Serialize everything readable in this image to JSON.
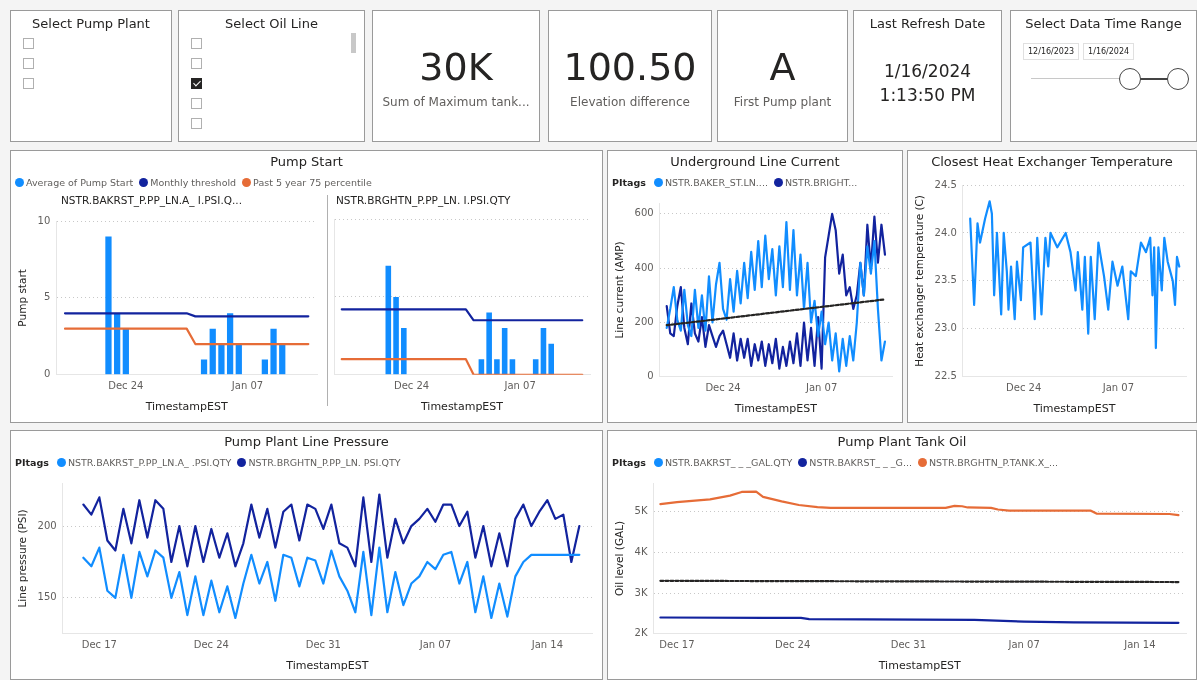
{
  "chart_data": [
    {
      "type": "other",
      "title": "Select Pump Plant"
    },
    {
      "type": "other",
      "title": "Select Oil Line"
    },
    {
      "type": "other",
      "annotations": [
        "30K",
        "Sum of Maximum tank..."
      ]
    },
    {
      "type": "other",
      "annotations": [
        "100.50",
        "Elevation difference"
      ]
    },
    {
      "type": "other",
      "annotations": [
        "A",
        "First Pump plant"
      ]
    },
    {
      "type": "other",
      "title": "Last Refresh Date",
      "annotations": [
        "1/16/2024",
        "1:13:50 PM"
      ]
    },
    {
      "type": "other",
      "title": "Select Data Time Range",
      "annotations": [
        "12/16/2023",
        "1/16/2024"
      ]
    },
    {
      "type": "bar",
      "title": "Pump Start",
      "subtitle": "NSTR.BAKRST_P.PP_LN.A_ I.PSI.Q...",
      "xlabel": "TimestampEST",
      "ylabel": "Pump start",
      "xlim": [
        "2023-12-16",
        "2024-01-15"
      ],
      "xticks": [
        {
          "value": "2023-12-24",
          "label": "Dec 24"
        },
        {
          "value": "2024-01-07",
          "label": "Jan 07"
        }
      ],
      "ylim": [
        0,
        10
      ],
      "yticks": [
        0,
        5,
        10
      ],
      "grid": "y",
      "legend": "top left",
      "series": [
        {
          "name": "Average of Pump Start",
          "color": "#118dff",
          "x": [
            "2023-12-22",
            "2023-12-23",
            "2023-12-24",
            "2024-01-02",
            "2024-01-03",
            "2024-01-04",
            "2024-01-05",
            "2024-01-06",
            "2024-01-09",
            "2024-01-10",
            "2024-01-11"
          ],
          "values": [
            9,
            4,
            3,
            1,
            3,
            2,
            4,
            2,
            1,
            3,
            2
          ]
        },
        {
          "name": "Monthly threshold",
          "type": "line",
          "color": "#12239e",
          "x": [
            "2023-12-17",
            "2023-12-31",
            "2024-01-01",
            "2024-01-14"
          ],
          "values": [
            4,
            4,
            3.8,
            3.8
          ]
        },
        {
          "name": "Past 5 year 75 percentile",
          "type": "line",
          "color": "#e66c37",
          "x": [
            "2023-12-17",
            "2023-12-31",
            "2024-01-01",
            "2024-01-14"
          ],
          "values": [
            3,
            3,
            2,
            2
          ]
        }
      ]
    },
    {
      "type": "bar",
      "subtitle": "NSTR.BRGHTN_P.PP_LN. I.PSI.QTY",
      "xlabel": "TimestampEST",
      "xlim": [
        "2023-12-14",
        "2024-01-16"
      ],
      "xticks": [
        {
          "value": "2023-12-24",
          "label": "Dec 24"
        },
        {
          "value": "2024-01-07",
          "label": "Jan 07"
        }
      ],
      "ylim": [
        0,
        10
      ],
      "yticks": [
        0,
        5,
        10
      ],
      "grid": "y",
      "tick_labels": "x",
      "series": [
        {
          "color": "#118dff",
          "x": [
            "2023-12-21",
            "2023-12-22",
            "2023-12-23",
            "2024-01-02",
            "2024-01-03",
            "2024-01-04",
            "2024-01-05",
            "2024-01-06",
            "2024-01-09",
            "2024-01-10",
            "2024-01-11"
          ],
          "values": [
            7,
            5,
            3,
            1,
            4,
            1,
            3,
            1,
            1,
            3,
            2
          ]
        },
        {
          "type": "line",
          "color": "#12239e",
          "x": [
            "2023-12-15",
            "2023-12-31",
            "2024-01-01",
            "2024-01-15"
          ],
          "values": [
            4.2,
            4.2,
            3.5,
            3.5
          ]
        },
        {
          "type": "line",
          "color": "#e66c37",
          "x": [
            "2023-12-15",
            "2023-12-31",
            "2024-01-01",
            "2024-01-15"
          ],
          "values": [
            1,
            1,
            0,
            0
          ]
        }
      ]
    },
    {
      "type": "line",
      "title": "Underground Line Current",
      "legend_title": "PItags",
      "xlabel": "TimestampEST",
      "ylabel": "Line current (AMP)",
      "xlim": [
        "2023-12-15",
        "2024-01-17"
      ],
      "xticks": [
        {
          "value": "2023-12-24",
          "label": "Dec 24"
        },
        {
          "value": "2024-01-07",
          "label": "Jan 07"
        }
      ],
      "ylim": [
        0,
        640
      ],
      "yticks": [
        0,
        200,
        400,
        600
      ],
      "grid": "y",
      "legend": "top left",
      "x": [
        "2023-12-16T00:00",
        "2023-12-16T12:00",
        "2023-12-17T00:00",
        "2023-12-17T12:00",
        "2023-12-18T00:00",
        "2023-12-18T12:00",
        "2023-12-19T00:00",
        "2023-12-19T12:00",
        "2023-12-20T00:00",
        "2023-12-20T12:00",
        "2023-12-21T00:00",
        "2023-12-21T12:00",
        "2023-12-22T00:00",
        "2023-12-22T12:00",
        "2023-12-23T00:00",
        "2023-12-23T12:00",
        "2023-12-24T00:00",
        "2023-12-24T12:00",
        "2023-12-25T00:00",
        "2023-12-25T12:00",
        "2023-12-26T00:00",
        "2023-12-26T12:00",
        "2023-12-27T00:00",
        "2023-12-27T12:00",
        "2023-12-28T00:00",
        "2023-12-28T12:00",
        "2023-12-29T00:00",
        "2023-12-29T12:00",
        "2023-12-30T00:00",
        "2023-12-30T12:00",
        "2023-12-31T00:00",
        "2023-12-31T12:00",
        "2024-01-01T00:00",
        "2024-01-01T12:00",
        "2024-01-02T00:00",
        "2024-01-02T12:00",
        "2024-01-03T00:00",
        "2024-01-03T12:00",
        "2024-01-04T00:00",
        "2024-01-04T12:00",
        "2024-01-05T00:00",
        "2024-01-05T12:00",
        "2024-01-06T00:00",
        "2024-01-06T12:00",
        "2024-01-07T00:00",
        "2024-01-07T12:00",
        "2024-01-08T00:00",
        "2024-01-08T12:00",
        "2024-01-09T00:00",
        "2024-01-09T12:00",
        "2024-01-10T00:00",
        "2024-01-10T12:00",
        "2024-01-11T00:00",
        "2024-01-11T12:00",
        "2024-01-12T00:00",
        "2024-01-12T12:00",
        "2024-01-13T00:00",
        "2024-01-13T12:00",
        "2024-01-14T00:00",
        "2024-01-14T12:00",
        "2024-01-15T00:00",
        "2024-01-15T12:00",
        "2024-01-16T00:00"
      ],
      "series": [
        {
          "name": "NSTR.BAKER_ST.LN....",
          "color": "#118dff",
          "values": [
            180,
            250,
            330,
            210,
            170,
            320,
            190,
            150,
            320,
            180,
            300,
            170,
            370,
            200,
            340,
            420,
            250,
            210,
            360,
            240,
            390,
            270,
            420,
            290,
            460,
            320,
            500,
            330,
            520,
            360,
            470,
            300,
            480,
            330,
            570,
            320,
            540,
            300,
            450,
            250,
            420,
            200,
            280,
            150,
            240,
            120,
            200,
            60,
            160,
            20,
            140,
            40,
            150,
            60,
            200,
            420,
            300,
            480,
            380,
            500,
            250,
            60,
            130
          ]
        },
        {
          "name": "NSTR.BRIGHT...",
          "color": "#12239e",
          "values": [
            260,
            160,
            150,
            260,
            330,
            180,
            120,
            270,
            160,
            130,
            220,
            110,
            190,
            150,
            110,
            150,
            170,
            120,
            70,
            160,
            60,
            140,
            70,
            140,
            40,
            120,
            60,
            130,
            40,
            120,
            50,
            140,
            30,
            110,
            40,
            130,
            50,
            160,
            40,
            200,
            60,
            180,
            40,
            220,
            30,
            440,
            520,
            600,
            540,
            380,
            450,
            300,
            330,
            250,
            300,
            420,
            300,
            560,
            400,
            590,
            420,
            560,
            450
          ]
        },
        {
          "type": "line",
          "color": "#252423",
          "line_style": "dashed",
          "x": [
            "2023-12-16",
            "2024-01-16"
          ],
          "values": [
            190,
            285
          ]
        }
      ]
    },
    {
      "type": "line",
      "title": "Closest Heat Exchanger Temperature",
      "xlabel": "TimestampEST",
      "ylabel": "Heat exchanger temperature (C)",
      "xlim": [
        "2023-12-15",
        "2024-01-17"
      ],
      "xticks": [
        {
          "value": "2023-12-24",
          "label": "Dec 24"
        },
        {
          "value": "2024-01-07",
          "label": "Jan 07"
        }
      ],
      "ylim": [
        22.5,
        24.5
      ],
      "yticks": [
        22.5,
        {
          "value": 23,
          "label": "23.0"
        },
        23.5,
        {
          "value": 24,
          "label": "24.0"
        },
        24.5
      ],
      "grid": "y",
      "x": [
        "2023-12-16T02:00",
        "2023-12-16T16:00",
        "2023-12-17T04:00",
        "2023-12-17T13:00",
        "2023-12-18T07:00",
        "2023-12-18T23:00",
        "2023-12-19T07:00",
        "2023-12-19T15:00",
        "2023-12-20T01:00",
        "2023-12-20T16:00",
        "2023-12-21T01:00",
        "2023-12-21T12:00",
        "2023-12-21T18:00",
        "2023-12-22T03:00",
        "2023-12-22T16:00",
        "2023-12-23T00:00",
        "2023-12-23T14:00",
        "2023-12-23T22:00",
        "2023-12-25T00:00",
        "2023-12-25T15:00",
        "2023-12-26T00:00",
        "2023-12-26T15:00",
        "2023-12-27T05:00",
        "2023-12-27T15:00",
        "2023-12-27T23:00",
        "2023-12-28T23:00",
        "2023-12-30T05:00",
        "2023-12-30T22:00",
        "2023-12-31T16:00",
        "2024-01-01T00:00",
        "2024-01-01T16:00",
        "2024-01-02T01:00",
        "2024-01-02T13:00",
        "2024-01-02T22:00",
        "2024-01-03T12:00",
        "2024-01-04T01:00",
        "2024-01-04T21:00",
        "2024-01-05T12:00",
        "2024-01-06T03:00",
        "2024-01-06T21:00",
        "2024-01-07T14:00",
        "2024-01-08T11:00",
        "2024-01-08T20:00",
        "2024-01-09T14:00",
        "2024-01-10T08:00",
        "2024-01-11T02:00",
        "2024-01-11T17:00",
        "2024-01-12T01:00",
        "2024-01-12T07:00",
        "2024-01-12T13:00",
        "2024-01-12T22:00",
        "2024-01-13T10:00",
        "2024-01-13T19:00",
        "2024-01-14T07:00",
        "2024-01-15T01:00",
        "2024-01-15T09:00",
        "2024-01-15T16:00",
        "2024-01-16T00:00"
      ],
      "series": [
        {
          "color": "#118dff",
          "values": [
            24.15,
            23.25,
            24.1,
            23.9,
            24.15,
            24.33,
            24.2,
            23.35,
            24.0,
            23.15,
            24.0,
            23.6,
            23.2,
            23.65,
            23.1,
            23.7,
            23.3,
            23.85,
            23.9,
            23.1,
            23.95,
            23.15,
            23.95,
            23.65,
            24.0,
            23.85,
            24.0,
            23.8,
            23.4,
            23.8,
            23.2,
            23.75,
            22.95,
            23.75,
            23.1,
            23.9,
            23.55,
            23.2,
            23.7,
            23.45,
            23.65,
            23.1,
            23.6,
            23.55,
            23.9,
            23.8,
            23.95,
            23.35,
            23.85,
            22.8,
            23.85,
            23.4,
            23.95,
            23.7,
            23.5,
            23.25,
            23.75,
            23.65
          ]
        }
      ]
    },
    {
      "type": "line",
      "title": "Pump Plant Line Pressure",
      "legend_title": "PItags",
      "xlabel": "TimestampEST",
      "ylabel": "Line pressure (PSI)",
      "xlim": [
        "2023-12-14T17:00",
        "2024-01-16T19:00"
      ],
      "xticks": [
        {
          "value": "2023-12-17",
          "label": "Dec 17"
        },
        {
          "value": "2023-12-24",
          "label": "Dec 24"
        },
        {
          "value": "2023-12-31",
          "label": "Dec 31"
        },
        {
          "value": "2024-01-07",
          "label": "Jan 07"
        },
        {
          "value": "2024-01-14",
          "label": "Jan 14"
        }
      ],
      "ylim": [
        125,
        230
      ],
      "yticks": [
        150,
        200
      ],
      "grid": "y",
      "legend": "top left",
      "x": [
        "2023-12-16T00:00",
        "2023-12-16T12:00",
        "2023-12-17T00:00",
        "2023-12-17T12:00",
        "2023-12-18T00:00",
        "2023-12-18T12:00",
        "2023-12-19T00:00",
        "2023-12-19T12:00",
        "2023-12-20T00:00",
        "2023-12-20T12:00",
        "2023-12-21T00:00",
        "2023-12-21T12:00",
        "2023-12-22T00:00",
        "2023-12-22T12:00",
        "2023-12-23T00:00",
        "2023-12-23T12:00",
        "2023-12-24T00:00",
        "2023-12-24T12:00",
        "2023-12-25T00:00",
        "2023-12-25T12:00",
        "2023-12-26T00:00",
        "2023-12-26T12:00",
        "2023-12-27T00:00",
        "2023-12-27T12:00",
        "2023-12-28T00:00",
        "2023-12-28T12:00",
        "2023-12-29T00:00",
        "2023-12-29T12:00",
        "2023-12-30T00:00",
        "2023-12-30T12:00",
        "2023-12-31T00:00",
        "2023-12-31T12:00",
        "2024-01-01T00:00",
        "2024-01-01T12:00",
        "2024-01-02T00:00",
        "2024-01-02T12:00",
        "2024-01-03T00:00",
        "2024-01-03T12:00",
        "2024-01-04T00:00",
        "2024-01-04T12:00",
        "2024-01-05T00:00",
        "2024-01-05T12:00",
        "2024-01-06T00:00",
        "2024-01-06T12:00",
        "2024-01-07T00:00",
        "2024-01-07T12:00",
        "2024-01-08T00:00",
        "2024-01-08T12:00",
        "2024-01-09T00:00",
        "2024-01-09T12:00",
        "2024-01-10T00:00",
        "2024-01-10T12:00",
        "2024-01-11T00:00",
        "2024-01-11T12:00",
        "2024-01-12T00:00",
        "2024-01-12T12:00",
        "2024-01-13T00:00",
        "2024-01-13T12:00",
        "2024-01-14T00:00",
        "2024-01-14T12:00",
        "2024-01-15T00:00",
        "2024-01-15T12:00",
        "2024-01-16T00:00"
      ],
      "series": [
        {
          "name": "NSTR.BAKRST_P.PP_LN.A_ .PSI.QTY",
          "color": "#118dff",
          "values": [
            178,
            172,
            185,
            155,
            150,
            180,
            150,
            182,
            165,
            183,
            178,
            150,
            168,
            138,
            165,
            138,
            162,
            140,
            158,
            136,
            160,
            180,
            160,
            175,
            148,
            180,
            178,
            158,
            178,
            176,
            160,
            183,
            165,
            155,
            140,
            182,
            138,
            185,
            140,
            168,
            145,
            160,
            165,
            175,
            170,
            180,
            182,
            160,
            175,
            140,
            165,
            136,
            160,
            137,
            165,
            175,
            180,
            180,
            180,
            180,
            180,
            180,
            180
          ]
        },
        {
          "name": "NSTR.BRGHTN_P.PP_LN. PSI.QTY",
          "color": "#12239e",
          "values": [
            215,
            208,
            220,
            190,
            183,
            212,
            188,
            218,
            192,
            218,
            212,
            175,
            200,
            172,
            200,
            175,
            198,
            178,
            195,
            172,
            188,
            215,
            192,
            212,
            185,
            210,
            215,
            190,
            215,
            212,
            198,
            215,
            188,
            185,
            172,
            220,
            175,
            222,
            178,
            205,
            188,
            200,
            205,
            212,
            203,
            215,
            215,
            200,
            210,
            178,
            200,
            172,
            195,
            172,
            205,
            215,
            200,
            210,
            218,
            205,
            208,
            175,
            200
          ]
        }
      ]
    },
    {
      "type": "line",
      "title": "Pump Plant Tank Oil",
      "legend_title": "PItags",
      "xlabel": "TimestampEST",
      "ylabel": "Oil level (GAL)",
      "xlim": [
        "2023-12-15T14:00",
        "2024-01-16T19:00"
      ],
      "xticks": [
        {
          "value": "2023-12-17",
          "label": "Dec 17"
        },
        {
          "value": "2023-12-24",
          "label": "Dec 24"
        },
        {
          "value": "2023-12-31",
          "label": "Dec 31"
        },
        {
          "value": "2024-01-07",
          "label": "Jan 07"
        },
        {
          "value": "2024-01-14",
          "label": "Jan 14"
        }
      ],
      "ylim": [
        2000,
        5700
      ],
      "yticks": [
        {
          "value": 2000,
          "label": "2K"
        },
        {
          "value": 3000,
          "label": "3K"
        },
        {
          "value": 4000,
          "label": "4K"
        },
        {
          "value": 5000,
          "label": "5K"
        }
      ],
      "grid": "y",
      "legend": "top left",
      "series": [
        {
          "name": "NSTR.BAKRST_ _ _GAL.QTY",
          "color": "#118dff"
        },
        {
          "name": "NSTR.BAKRST_ _ _G...",
          "color": "#12239e",
          "x": [
            "2023-12-16",
            "2023-12-24T12:00",
            "2023-12-25",
            "2024-01-04",
            "2024-01-07",
            "2024-01-10",
            "2024-01-16T08:00"
          ],
          "values": [
            2400,
            2390,
            2360,
            2340,
            2300,
            2280,
            2270
          ]
        },
        {
          "name": "NSTR.BRGHTN_P.TANK.X_...",
          "color": "#e66c37",
          "x": [
            "2023-12-16",
            "2023-12-17",
            "2023-12-19",
            "2023-12-20T05:00",
            "2023-12-20T22:00",
            "2023-12-21T19:00",
            "2023-12-22T05:00",
            "2023-12-23T08:00",
            "2023-12-24T09:00",
            "2023-12-25T12:00",
            "2023-12-26T07:00",
            "2024-01-02T06:00",
            "2024-01-02T19:00",
            "2024-01-03T06:00",
            "2024-01-03T14:00",
            "2024-01-05T00:00",
            "2024-01-05T10:00",
            "2024-01-06T02:00",
            "2024-01-11T01:00",
            "2024-01-11T09:00",
            "2024-01-15T19:00",
            "2024-01-16T08:00"
          ],
          "values": [
            5180,
            5230,
            5300,
            5390,
            5480,
            5490,
            5360,
            5250,
            5160,
            5110,
            5090,
            5090,
            5140,
            5130,
            5100,
            5090,
            5050,
            5020,
            5020,
            4950,
            4940,
            4910
          ]
        },
        {
          "type": "line",
          "color": "#252423",
          "line_style": "dashed",
          "x": [
            "2023-12-16",
            "2024-01-16T08:00"
          ],
          "values": [
            3300,
            3270
          ]
        }
      ]
    }
  ]
}
